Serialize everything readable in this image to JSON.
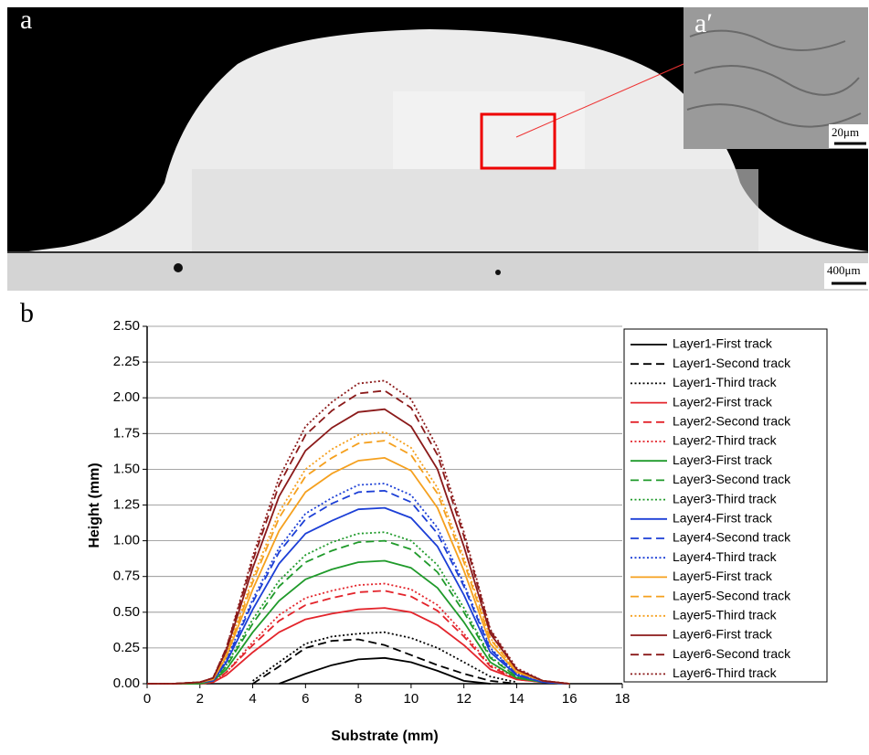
{
  "panels": {
    "a_label": "a",
    "a_inset_label": "a′",
    "a_inset_scale": "20μm",
    "a_scale": "400μm",
    "b_label": "b"
  },
  "chart_data": {
    "type": "line",
    "x_label": "Substrate (mm)",
    "y_label": "Height (mm)",
    "x": [
      0,
      1,
      2,
      2.5,
      3,
      4,
      5,
      6,
      7,
      8,
      9,
      10,
      11,
      12,
      13,
      14,
      15,
      16
    ],
    "xlim": [
      0,
      18
    ],
    "xticks": [
      0,
      2,
      4,
      6,
      8,
      10,
      12,
      14,
      16,
      18
    ],
    "ylim": [
      0,
      2.5
    ],
    "yticks": [
      {
        "value": 0,
        "label": "0.00"
      },
      {
        "value": 0.25,
        "label": "0.25"
      },
      {
        "value": 0.5,
        "label": "0.50"
      },
      {
        "value": 0.75,
        "label": "0.75"
      },
      {
        "value": 1,
        "label": "1.00"
      },
      {
        "value": 1.25,
        "label": "1.25"
      },
      {
        "value": 1.5,
        "label": "1.50"
      },
      {
        "value": 1.75,
        "label": "1.75"
      },
      {
        "value": 2,
        "label": "2.00"
      },
      {
        "value": 2.25,
        "label": "2.25"
      },
      {
        "value": 2.5,
        "label": "2.50"
      }
    ],
    "grid": true,
    "legend": "right",
    "series": [
      {
        "name": "Layer1-First track",
        "color": "#000000",
        "dash": "solid",
        "values": [
          null,
          null,
          null,
          null,
          null,
          null,
          0,
          0.07,
          0.13,
          0.17,
          0.18,
          0.15,
          0.09,
          0.02,
          0,
          null,
          null,
          null
        ]
      },
      {
        "name": "Layer1-Second track",
        "color": "#000000",
        "dash": "dashed",
        "values": [
          null,
          null,
          null,
          null,
          null,
          0,
          0.12,
          0.25,
          0.3,
          0.31,
          0.27,
          0.2,
          0.13,
          0.07,
          0.02,
          0,
          null,
          null
        ]
      },
      {
        "name": "Layer1-Third track",
        "color": "#000000",
        "dash": "dotted",
        "values": [
          null,
          null,
          null,
          null,
          null,
          0.02,
          0.15,
          0.28,
          0.33,
          0.35,
          0.36,
          0.32,
          0.25,
          0.15,
          0.05,
          0.01,
          null,
          null
        ]
      },
      {
        "name": "Layer2-First track",
        "color": "#e3242b",
        "dash": "solid",
        "values": [
          0,
          0,
          0,
          0.01,
          0.06,
          0.22,
          0.36,
          0.45,
          0.49,
          0.52,
          0.53,
          0.5,
          0.41,
          0.27,
          0.1,
          0.03,
          0.01,
          0
        ]
      },
      {
        "name": "Layer2-Second track",
        "color": "#e3242b",
        "dash": "dashed",
        "values": [
          0,
          0,
          0,
          0.01,
          0.08,
          0.27,
          0.44,
          0.55,
          0.6,
          0.64,
          0.65,
          0.61,
          0.51,
          0.33,
          0.12,
          0.03,
          0.01,
          0
        ]
      },
      {
        "name": "Layer2-Third track",
        "color": "#e3242b",
        "dash": "dotted",
        "values": [
          0,
          0,
          0,
          0.01,
          0.08,
          0.29,
          0.48,
          0.6,
          0.65,
          0.69,
          0.7,
          0.66,
          0.55,
          0.35,
          0.13,
          0.04,
          0.01,
          0
        ]
      },
      {
        "name": "Layer3-First track",
        "color": "#1f9a2a",
        "dash": "solid",
        "values": [
          0,
          0,
          0,
          0.02,
          0.1,
          0.36,
          0.58,
          0.73,
          0.8,
          0.85,
          0.86,
          0.81,
          0.67,
          0.43,
          0.15,
          0.04,
          0.01,
          0
        ]
      },
      {
        "name": "Layer3-Second track",
        "color": "#1f9a2a",
        "dash": "dashed",
        "values": [
          0,
          0,
          0.01,
          0.02,
          0.12,
          0.42,
          0.68,
          0.85,
          0.93,
          0.99,
          1,
          0.94,
          0.78,
          0.5,
          0.18,
          0.05,
          0.01,
          0
        ]
      },
      {
        "name": "Layer3-Third track",
        "color": "#1f9a2a",
        "dash": "dotted",
        "values": [
          0,
          0,
          0.01,
          0.02,
          0.13,
          0.45,
          0.72,
          0.9,
          0.99,
          1.05,
          1.06,
          1,
          0.83,
          0.53,
          0.19,
          0.05,
          0.01,
          0
        ]
      },
      {
        "name": "Layer4-First track",
        "color": "#1c3fd6",
        "dash": "solid",
        "values": [
          0,
          0,
          0.01,
          0.02,
          0.15,
          0.52,
          0.84,
          1.05,
          1.14,
          1.22,
          1.23,
          1.16,
          0.96,
          0.62,
          0.22,
          0.06,
          0.01,
          0
        ]
      },
      {
        "name": "Layer4-Second track",
        "color": "#1c3fd6",
        "dash": "dashed",
        "values": [
          0,
          0,
          0.01,
          0.03,
          0.16,
          0.57,
          0.92,
          1.15,
          1.26,
          1.34,
          1.35,
          1.27,
          1.05,
          0.68,
          0.24,
          0.07,
          0.01,
          0
        ]
      },
      {
        "name": "Layer4-Third track",
        "color": "#1c3fd6",
        "dash": "dotted",
        "values": [
          0,
          0,
          0.01,
          0.03,
          0.17,
          0.59,
          0.95,
          1.19,
          1.3,
          1.39,
          1.4,
          1.32,
          1.09,
          0.7,
          0.25,
          0.07,
          0.01,
          0
        ]
      },
      {
        "name": "Layer5-First track",
        "color": "#f5a01e",
        "dash": "solid",
        "values": [
          0,
          0,
          0.01,
          0.03,
          0.19,
          0.66,
          1.07,
          1.34,
          1.47,
          1.56,
          1.58,
          1.49,
          1.23,
          0.79,
          0.28,
          0.08,
          0.02,
          0
        ]
      },
      {
        "name": "Layer5-Second track",
        "color": "#f5a01e",
        "dash": "dashed",
        "values": [
          0,
          0,
          0.01,
          0.03,
          0.2,
          0.71,
          1.16,
          1.45,
          1.58,
          1.68,
          1.7,
          1.6,
          1.33,
          0.85,
          0.31,
          0.09,
          0.02,
          0
        ]
      },
      {
        "name": "Layer5-Third track",
        "color": "#f5a01e",
        "dash": "dotted",
        "values": [
          0,
          0,
          0.01,
          0.04,
          0.21,
          0.74,
          1.2,
          1.5,
          1.64,
          1.74,
          1.76,
          1.65,
          1.37,
          0.88,
          0.32,
          0.09,
          0.02,
          0
        ]
      },
      {
        "name": "Layer6-First track",
        "color": "#8b1a1a",
        "dash": "solid",
        "values": [
          0,
          0,
          0.01,
          0.04,
          0.23,
          0.81,
          1.31,
          1.63,
          1.79,
          1.9,
          1.92,
          1.8,
          1.5,
          0.96,
          0.35,
          0.1,
          0.02,
          0
        ]
      },
      {
        "name": "Layer6-Second track",
        "color": "#8b1a1a",
        "dash": "dashed",
        "values": [
          0,
          0,
          0.01,
          0.04,
          0.25,
          0.86,
          1.39,
          1.74,
          1.91,
          2.03,
          2.05,
          1.93,
          1.6,
          1.03,
          0.37,
          0.1,
          0.02,
          0
        ]
      },
      {
        "name": "Layer6-Third track",
        "color": "#8b1a1a",
        "dash": "dotted",
        "values": [
          0,
          0,
          0.01,
          0.04,
          0.25,
          0.89,
          1.44,
          1.8,
          1.97,
          2.1,
          2.12,
          1.99,
          1.65,
          1.06,
          0.38,
          0.11,
          0.02,
          0
        ]
      }
    ]
  }
}
